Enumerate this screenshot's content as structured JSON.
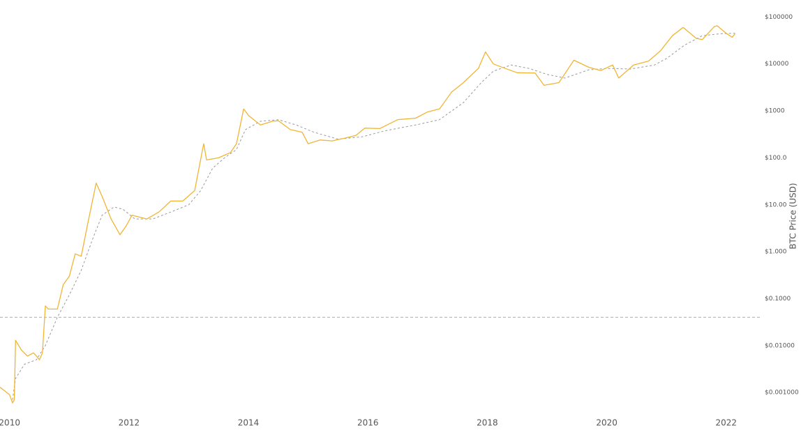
{
  "chart_data": {
    "type": "line",
    "y_label": "BTC Price (USD)",
    "log_scale": true,
    "grid": false,
    "xlim": [
      2009.84,
      2022.4
    ],
    "xticks": [
      2010,
      2012,
      2014,
      2016,
      2018,
      2020,
      2022
    ],
    "ylim": [
      0.0004,
      230000
    ],
    "yticks": [
      {
        "value": 0.001,
        "label": "$0.001000"
      },
      {
        "value": 0.01,
        "label": "$0.01000"
      },
      {
        "value": 0.1,
        "label": "$0.1000"
      },
      {
        "value": 1,
        "label": "$1.000"
      },
      {
        "value": 10,
        "label": "$10.00"
      },
      {
        "value": 100,
        "label": "$100.0"
      },
      {
        "value": 1000,
        "label": "$1000"
      },
      {
        "value": 10000,
        "label": "$10000"
      },
      {
        "value": 100000,
        "label": "$100000"
      }
    ],
    "hlines": [
      0.04
    ],
    "hline_color": "#aaaaaa",
    "series": [
      {
        "color": "#f0b533",
        "dash": false,
        "x": [
          2009.84,
          2010.0,
          2010.05,
          2010.08,
          2010.1,
          2010.2,
          2010.3,
          2010.4,
          2010.45,
          2010.5,
          2010.55,
          2010.6,
          2010.65,
          2010.8,
          2010.9,
          2011.0,
          2011.1,
          2011.2,
          2011.3,
          2011.45,
          2011.55,
          2011.7,
          2011.85,
          2011.95,
          2012.05,
          2012.3,
          2012.5,
          2012.7,
          2012.9,
          2013.1,
          2013.25,
          2013.3,
          2013.5,
          2013.7,
          2013.8,
          2013.92,
          2014.0,
          2014.2,
          2014.4,
          2014.5,
          2014.7,
          2014.9,
          2015.0,
          2015.2,
          2015.4,
          2015.6,
          2015.8,
          2015.95,
          2016.2,
          2016.5,
          2016.8,
          2017.0,
          2017.2,
          2017.4,
          2017.6,
          2017.85,
          2017.97,
          2018.1,
          2018.3,
          2018.5,
          2018.8,
          2018.95,
          2019.2,
          2019.45,
          2019.7,
          2019.9,
          2020.1,
          2020.2,
          2020.45,
          2020.7,
          2020.9,
          2021.1,
          2021.28,
          2021.5,
          2021.6,
          2021.8,
          2021.85,
          2022.0,
          2022.1,
          2022.15
        ],
        "values": [
          0.0013,
          0.0009,
          0.0006,
          0.0007,
          0.013,
          0.008,
          0.006,
          0.007,
          0.006,
          0.005,
          0.007,
          0.07,
          0.06,
          0.06,
          0.2,
          0.3,
          0.9,
          0.8,
          3.5,
          29,
          15,
          5,
          2.3,
          3.5,
          6,
          5,
          7,
          12,
          12,
          20,
          200,
          90,
          100,
          130,
          200,
          1100,
          800,
          500,
          600,
          620,
          400,
          350,
          200,
          240,
          230,
          260,
          300,
          430,
          420,
          650,
          700,
          950,
          1100,
          2500,
          4000,
          8000,
          18000,
          10000,
          8000,
          6500,
          6400,
          3500,
          4000,
          12000,
          8500,
          7200,
          9500,
          5000,
          9500,
          11500,
          19000,
          40000,
          60000,
          35000,
          33000,
          62000,
          65000,
          45000,
          37000,
          44000
        ]
      },
      {
        "color": "#999999",
        "dash": true,
        "x": [
          2010.05,
          2010.1,
          2010.25,
          2010.45,
          2010.6,
          2010.8,
          2011.0,
          2011.2,
          2011.4,
          2011.55,
          2011.75,
          2011.9,
          2012.1,
          2012.4,
          2012.7,
          2013.0,
          2013.2,
          2013.4,
          2013.6,
          2013.8,
          2013.95,
          2014.2,
          2014.5,
          2014.8,
          2015.1,
          2015.5,
          2015.9,
          2016.3,
          2016.8,
          2017.2,
          2017.6,
          2017.9,
          2018.1,
          2018.4,
          2018.7,
          2019.0,
          2019.3,
          2019.7,
          2020.0,
          2020.4,
          2020.8,
          2021.0,
          2021.3,
          2021.6,
          2021.9,
          2022.15
        ],
        "values": [
          0.0007,
          0.002,
          0.004,
          0.005,
          0.01,
          0.04,
          0.12,
          0.4,
          2,
          6,
          9,
          8,
          5,
          5,
          7,
          10,
          20,
          60,
          100,
          150,
          400,
          600,
          650,
          500,
          350,
          250,
          280,
          380,
          500,
          650,
          1500,
          4000,
          7000,
          9500,
          8000,
          6000,
          5000,
          7500,
          8000,
          7800,
          9500,
          13000,
          25000,
          40000,
          44000,
          45000
        ]
      }
    ]
  }
}
